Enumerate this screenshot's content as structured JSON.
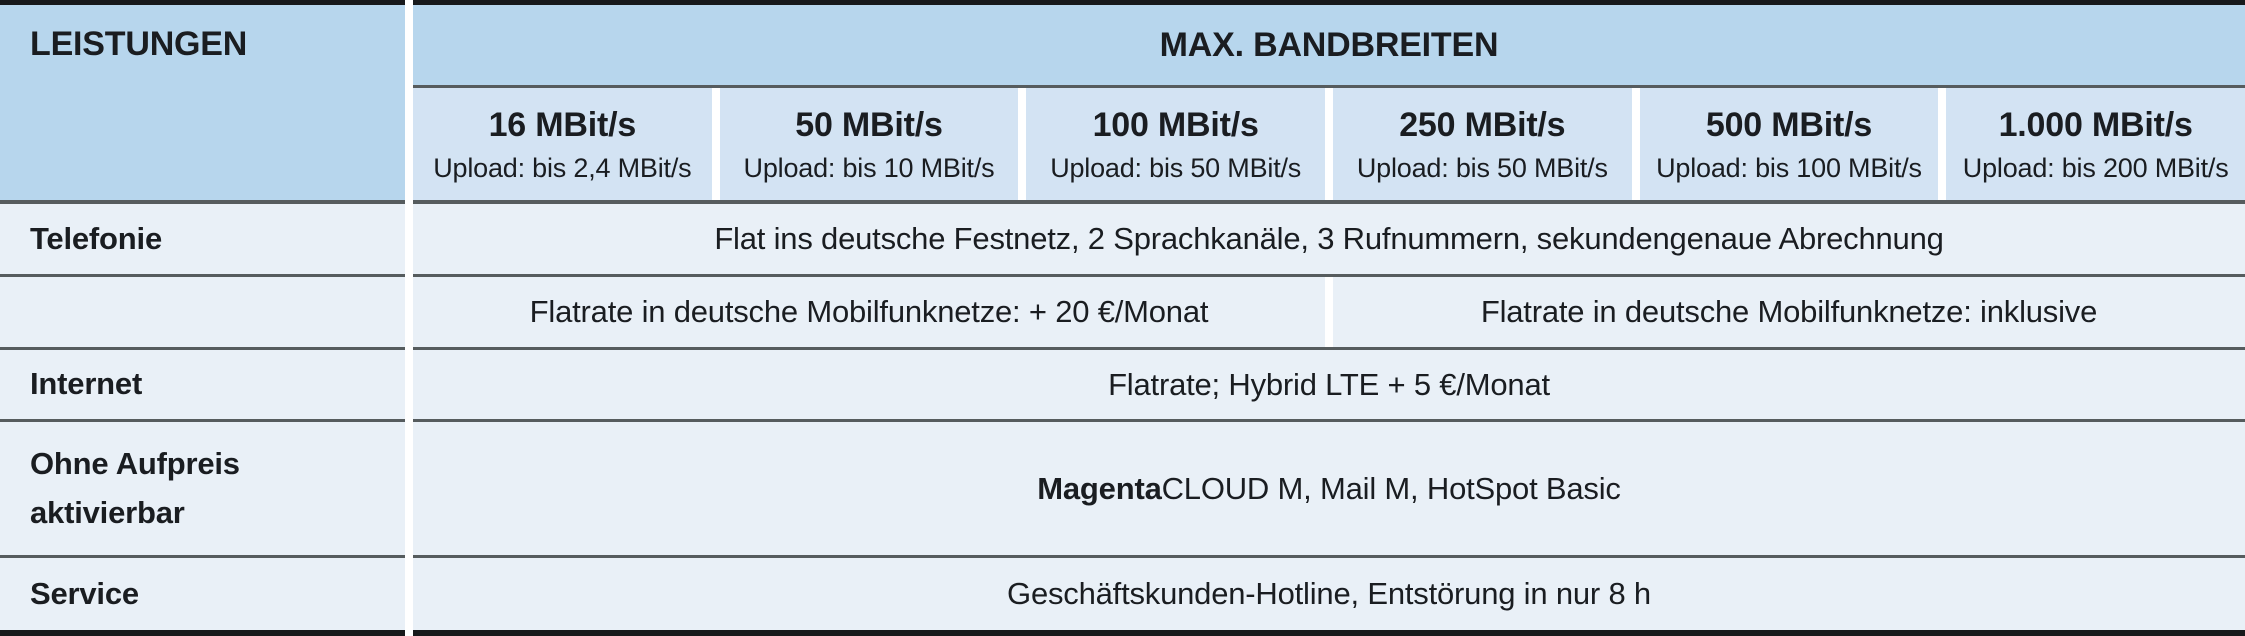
{
  "table": {
    "leistungen_header": "LEISTUNGEN",
    "bandbreiten_header": "MAX. BANDBREITEN",
    "columns": [
      {
        "speed": "16 MBit/s",
        "upload": "Upload: bis 2,4 MBit/s"
      },
      {
        "speed": "50 MBit/s",
        "upload": "Upload: bis 10 MBit/s"
      },
      {
        "speed": "100 MBit/s",
        "upload": "Upload: bis 50 MBit/s"
      },
      {
        "speed": "250 MBit/s",
        "upload": "Upload: bis 50 MBit/s"
      },
      {
        "speed": "500 MBit/s",
        "upload": "Upload: bis 100 MBit/s"
      },
      {
        "speed": "1.000 MBit/s",
        "upload": "Upload: bis 200 MBit/s"
      }
    ],
    "rows": [
      {
        "label": "Telefonie",
        "value": "Flat ins deutsche Festnetz, 2 Sprachkanäle, 3 Rufnummern, sekundengenaue Abrechnung"
      },
      {
        "label": "",
        "value_left": "Flatrate in deutsche Mobilfunknetze: + 20 €/Monat",
        "value_right": "Flatrate in deutsche Mobilfunknetze: inklusive"
      },
      {
        "label": "Internet",
        "value": "Flatrate; Hybrid LTE + 5 €/Monat"
      },
      {
        "label": "Ohne Aufpreis aktivierbar",
        "value_bold": "Magenta",
        "value_rest": "CLOUD M, Mail M, HotSpot Basic"
      },
      {
        "label": "Service",
        "value": "Geschäftskunden-Hotline, Entstörung in nur 8 h"
      }
    ],
    "colors": {
      "header_blue": "#b7d6ed",
      "subheader_blue": "#d3e3f3",
      "row_bg": "#e9f0f7",
      "divider": "#565c5e",
      "outer_border": "#17191b",
      "text": "#1a1d21"
    }
  }
}
